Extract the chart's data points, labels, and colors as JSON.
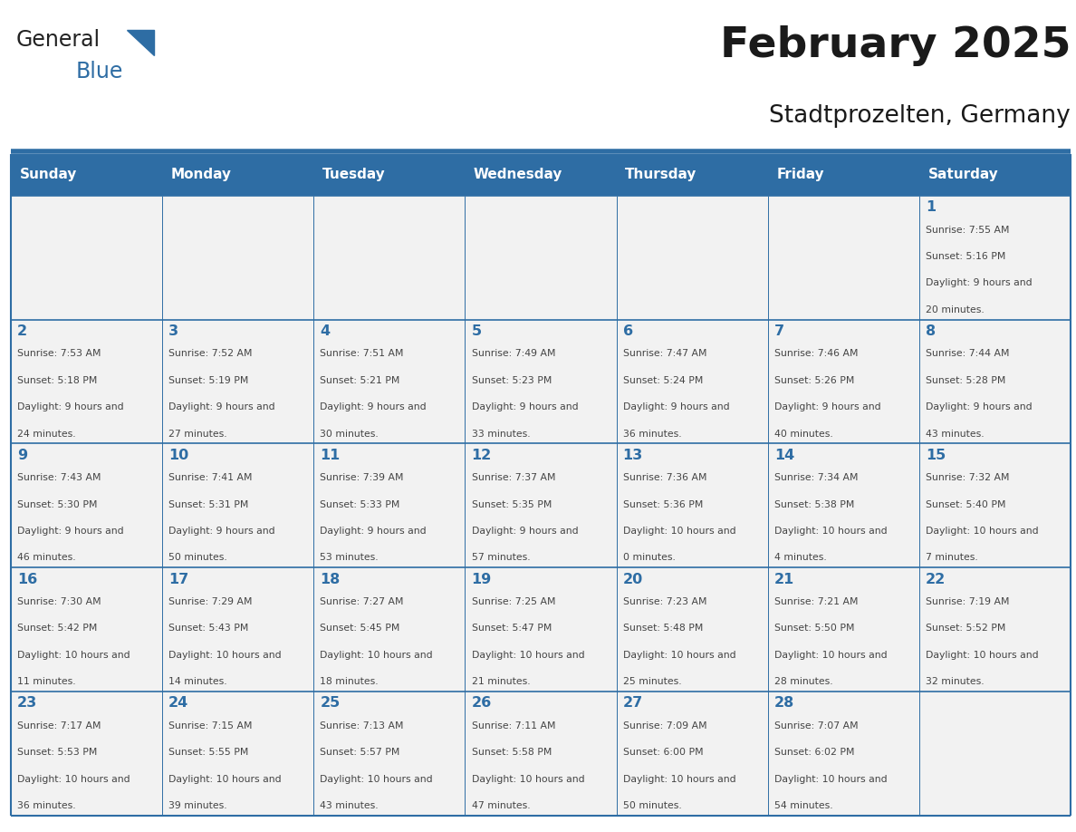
{
  "title": "February 2025",
  "subtitle": "Stadtprozelten, Germany",
  "days_of_week": [
    "Sunday",
    "Monday",
    "Tuesday",
    "Wednesday",
    "Thursday",
    "Friday",
    "Saturday"
  ],
  "header_bg": "#2E6DA4",
  "header_text": "#FFFFFF",
  "cell_bg": "#F2F2F2",
  "border_color": "#2E6DA4",
  "text_color": "#444444",
  "day_num_color": "#2E6DA4",
  "calendar": [
    [
      null,
      null,
      null,
      null,
      null,
      null,
      1
    ],
    [
      2,
      3,
      4,
      5,
      6,
      7,
      8
    ],
    [
      9,
      10,
      11,
      12,
      13,
      14,
      15
    ],
    [
      16,
      17,
      18,
      19,
      20,
      21,
      22
    ],
    [
      23,
      24,
      25,
      26,
      27,
      28,
      null
    ]
  ],
  "sunrise_data": {
    "1": [
      "7:55 AM",
      "5:16 PM",
      "9 hours and 20 minutes"
    ],
    "2": [
      "7:53 AM",
      "5:18 PM",
      "9 hours and 24 minutes"
    ],
    "3": [
      "7:52 AM",
      "5:19 PM",
      "9 hours and 27 minutes"
    ],
    "4": [
      "7:51 AM",
      "5:21 PM",
      "9 hours and 30 minutes"
    ],
    "5": [
      "7:49 AM",
      "5:23 PM",
      "9 hours and 33 minutes"
    ],
    "6": [
      "7:47 AM",
      "5:24 PM",
      "9 hours and 36 minutes"
    ],
    "7": [
      "7:46 AM",
      "5:26 PM",
      "9 hours and 40 minutes"
    ],
    "8": [
      "7:44 AM",
      "5:28 PM",
      "9 hours and 43 minutes"
    ],
    "9": [
      "7:43 AM",
      "5:30 PM",
      "9 hours and 46 minutes"
    ],
    "10": [
      "7:41 AM",
      "5:31 PM",
      "9 hours and 50 minutes"
    ],
    "11": [
      "7:39 AM",
      "5:33 PM",
      "9 hours and 53 minutes"
    ],
    "12": [
      "7:37 AM",
      "5:35 PM",
      "9 hours and 57 minutes"
    ],
    "13": [
      "7:36 AM",
      "5:36 PM",
      "10 hours and 0 minutes"
    ],
    "14": [
      "7:34 AM",
      "5:38 PM",
      "10 hours and 4 minutes"
    ],
    "15": [
      "7:32 AM",
      "5:40 PM",
      "10 hours and 7 minutes"
    ],
    "16": [
      "7:30 AM",
      "5:42 PM",
      "10 hours and 11 minutes"
    ],
    "17": [
      "7:29 AM",
      "5:43 PM",
      "10 hours and 14 minutes"
    ],
    "18": [
      "7:27 AM",
      "5:45 PM",
      "10 hours and 18 minutes"
    ],
    "19": [
      "7:25 AM",
      "5:47 PM",
      "10 hours and 21 minutes"
    ],
    "20": [
      "7:23 AM",
      "5:48 PM",
      "10 hours and 25 minutes"
    ],
    "21": [
      "7:21 AM",
      "5:50 PM",
      "10 hours and 28 minutes"
    ],
    "22": [
      "7:19 AM",
      "5:52 PM",
      "10 hours and 32 minutes"
    ],
    "23": [
      "7:17 AM",
      "5:53 PM",
      "10 hours and 36 minutes"
    ],
    "24": [
      "7:15 AM",
      "5:55 PM",
      "10 hours and 39 minutes"
    ],
    "25": [
      "7:13 AM",
      "5:57 PM",
      "10 hours and 43 minutes"
    ],
    "26": [
      "7:11 AM",
      "5:58 PM",
      "10 hours and 47 minutes"
    ],
    "27": [
      "7:09 AM",
      "6:00 PM",
      "10 hours and 50 minutes"
    ],
    "28": [
      "7:07 AM",
      "6:02 PM",
      "10 hours and 54 minutes"
    ]
  }
}
